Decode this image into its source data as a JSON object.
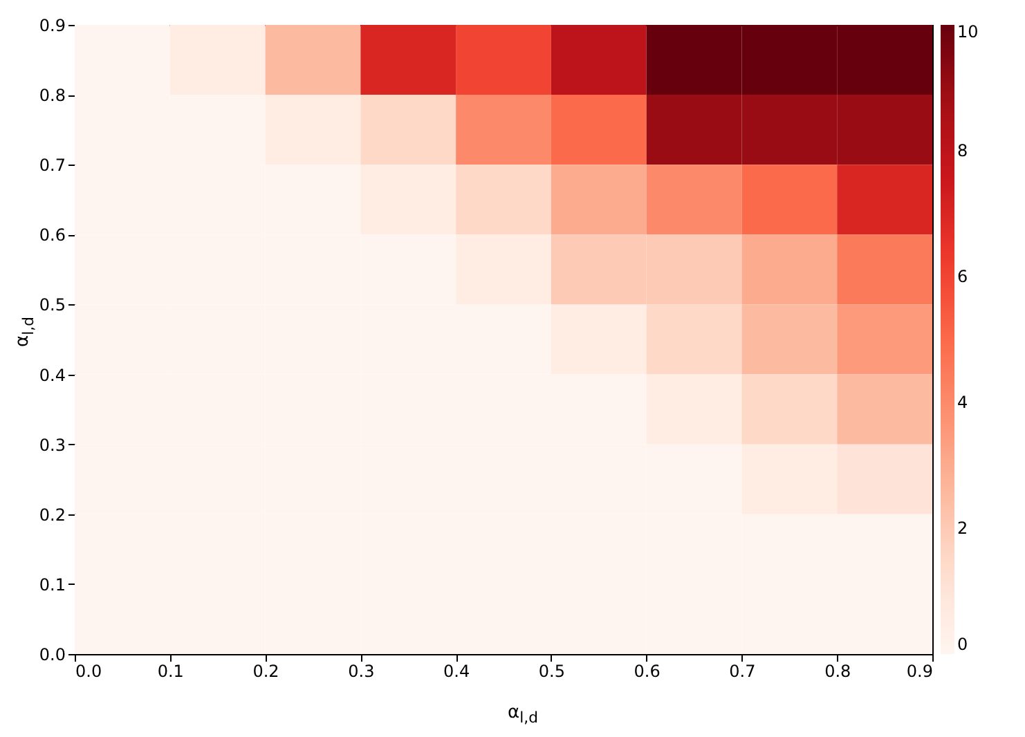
{
  "chart_data": {
    "type": "heatmap",
    "xlabel": "α$_{l,d}$",
    "ylabel": "α$_{l,d}$",
    "xlim": [
      0,
      0.9
    ],
    "ylim": [
      0,
      0.9
    ],
    "xticks": [
      {
        "value": 0,
        "label": "0.0"
      },
      0.1,
      0.2,
      0.3,
      0.4,
      0.5,
      0.6,
      0.7,
      0.8,
      0.9
    ],
    "yticks": [
      {
        "value": 0,
        "label": "0.0"
      },
      0.1,
      0.2,
      0.3,
      0.4,
      0.5,
      0.6,
      0.7,
      0.8,
      0.9
    ],
    "clim": [
      0,
      10
    ],
    "cticks": [
      0,
      2,
      4,
      6,
      8,
      10
    ],
    "cells": [
      [
        0,
        0.5,
        2.5,
        7,
        6,
        8,
        10,
        10,
        10
      ],
      [
        0,
        0,
        0.5,
        1.5,
        4,
        5,
        9,
        9,
        9
      ],
      [
        0,
        0,
        0,
        0.5,
        1.5,
        3,
        4,
        5,
        7
      ],
      [
        0,
        0,
        0,
        0,
        0.5,
        2,
        2,
        3,
        4.5
      ],
      [
        0,
        0,
        0,
        0,
        0,
        0.5,
        1.5,
        2.5,
        3.5
      ],
      [
        0,
        0,
        0,
        0,
        0,
        0,
        0.5,
        1.5,
        2.5
      ],
      [
        0,
        0,
        0,
        0,
        0,
        0,
        0,
        0.5,
        1
      ],
      [
        0,
        0,
        0,
        0,
        0,
        0,
        0,
        0,
        0
      ],
      [
        0,
        0,
        0,
        0,
        0,
        0,
        0,
        0,
        0
      ]
    ]
  }
}
